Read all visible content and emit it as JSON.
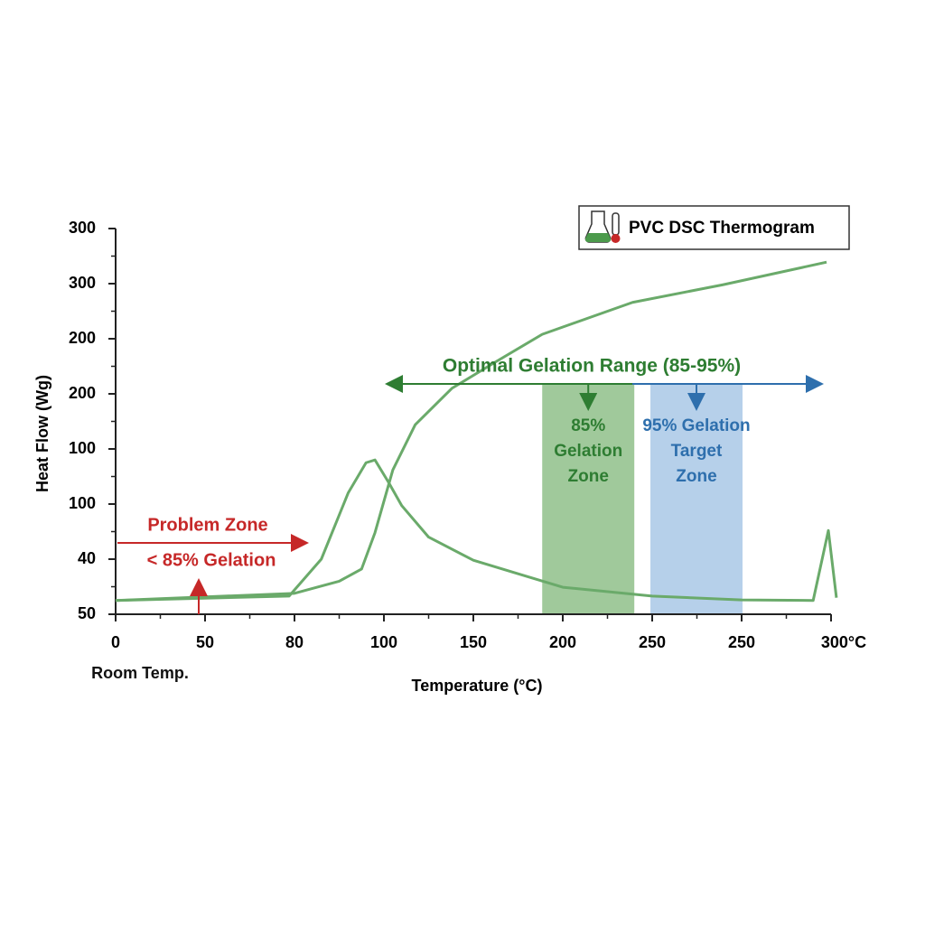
{
  "chart_data": {
    "type": "line",
    "title": "PVC DSC Thermogram",
    "xlabel": "Temperature (°C)",
    "ylabel": "Heat Flow (Wg)",
    "xlim": [
      0,
      8
    ],
    "xticks": [
      0,
      {
        "value": 1,
        "label": "50"
      },
      {
        "value": 2,
        "label": "80"
      },
      {
        "value": 3,
        "label": "100"
      },
      {
        "value": 4,
        "label": "150"
      },
      {
        "value": 5,
        "label": "200"
      },
      {
        "value": 6,
        "label": "250"
      },
      {
        "value": 7,
        "label": "250"
      },
      {
        "value": 8,
        "label": "300°C"
      }
    ],
    "ylim": [
      0,
      7
    ],
    "yticks": [
      {
        "value": 0,
        "label": "50"
      },
      {
        "value": 1,
        "label": "40"
      },
      {
        "value": 2,
        "label": "100"
      },
      {
        "value": 3,
        "label": "100"
      },
      {
        "value": 4,
        "label": "200"
      },
      {
        "value": 5,
        "label": "200"
      },
      {
        "value": 6,
        "label": "300"
      },
      {
        "value": 7,
        "label": "300"
      }
    ],
    "series": [
      {
        "color": "#6aaa6a",
        "x": [
          0,
          1.94,
          2.3,
          2.6,
          2.8,
          2.9,
          3.05,
          3.2,
          3.5,
          4.0,
          5.0,
          6.0,
          7.0,
          7.8,
          7.97,
          8.06
        ],
        "values": [
          0.25,
          0.33,
          1.0,
          2.2,
          2.75,
          2.8,
          2.4,
          1.97,
          1.4,
          0.98,
          0.49,
          0.33,
          0.26,
          0.25,
          1.52,
          0.3
        ]
      },
      {
        "color": "#6aaa6a",
        "x": [
          0,
          2.0,
          2.5,
          2.75,
          2.9,
          3.1,
          3.35,
          3.76,
          4.26,
          4.77,
          5.78,
          6.79,
          7.95
        ],
        "values": [
          0.25,
          0.38,
          0.6,
          0.82,
          1.48,
          2.62,
          3.44,
          4.1,
          4.59,
          5.08,
          5.66,
          5.98,
          6.39
        ]
      }
    ],
    "bands": [
      {
        "x": [
          4.77,
          5.8
        ],
        "top": 4.18,
        "color": "#8fbf8a",
        "label": [
          "85%",
          "Gelation",
          "Zone"
        ],
        "label_color": "#2e7d32"
      },
      {
        "x": [
          5.98,
          7.01
        ],
        "top": 4.18,
        "color": "#a9c8e6",
        "label": [
          "95% Gelation",
          "Target",
          "Zone"
        ],
        "label_color": "#2e6fad"
      }
    ],
    "annotations": [
      {
        "text": "Optimal Gelation Range (85-95%)",
        "color": "#2e7d32"
      },
      {
        "text": "Problem Zone",
        "color": "#c62828"
      },
      {
        "text": "< 85% Gelation",
        "color": "#c62828"
      },
      {
        "text": "Room Temp.",
        "color": "#111"
      }
    ]
  }
}
